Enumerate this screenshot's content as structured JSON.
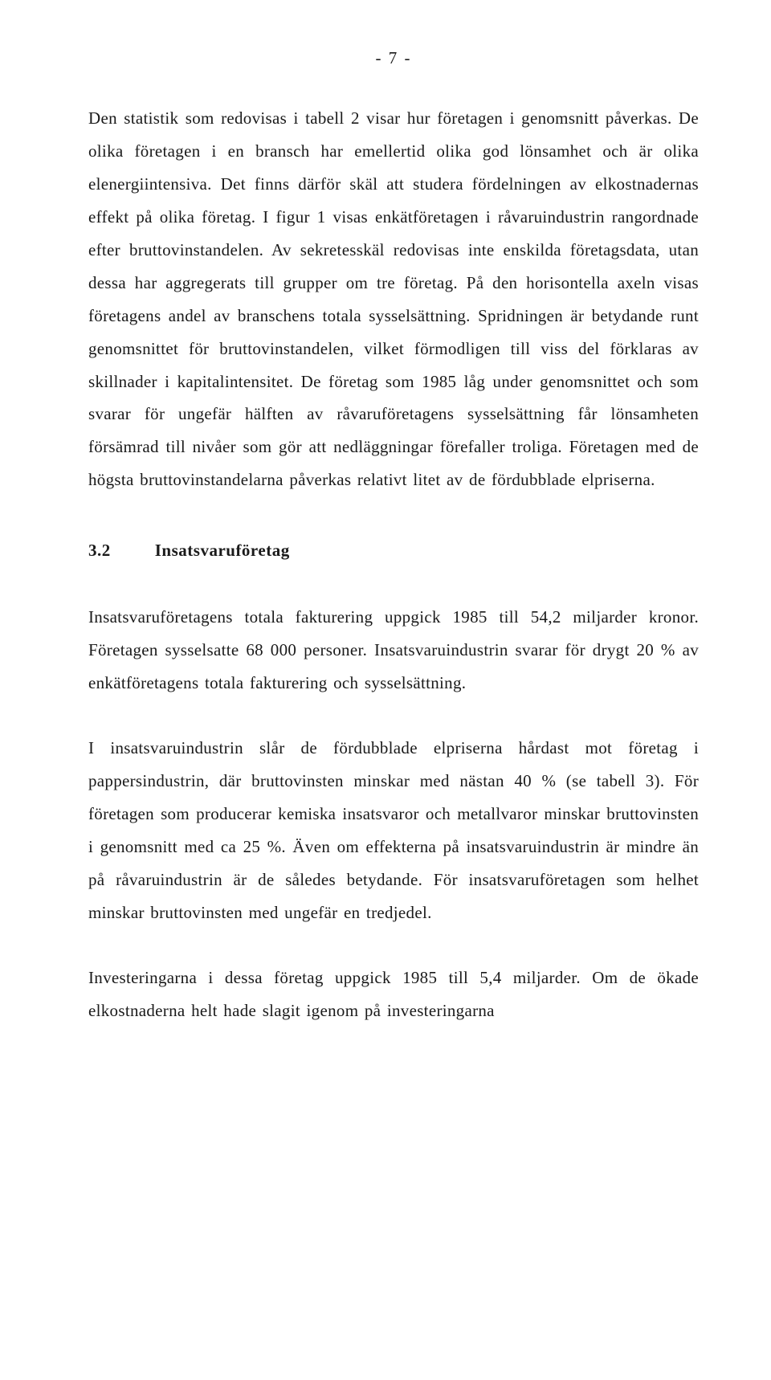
{
  "page_number": "- 7 -",
  "paragraphs": {
    "p1": "Den statistik som redovisas i tabell 2 visar hur företagen i genomsnitt påverkas. De olika företagen i en bransch har emellertid olika god lönsamhet och är olika elenergiintensiva. Det finns därför skäl att studera fördelningen av elkostnadernas effekt på olika företag. I figur 1 visas enkätföretagen i råvaruindustrin rangordnade efter bruttovinstandelen. Av sekretesskäl redovisas inte enskilda företagsdata, utan dessa har aggregerats till grupper om tre företag. På den horisontella axeln visas företagens andel av branschens totala sysselsättning. Spridningen är betydande runt genomsnittet för bruttovinstandelen, vilket förmodligen till viss del förklaras av skillnader i kapitalintensitet. De företag som 1985 låg under genomsnittet och som svarar för ungefär hälften av råvaruföretagens sysselsättning får lönsamheten försämrad till nivåer som gör att nedläggningar förefaller troliga. Företagen med de högsta bruttovinstandelarna påverkas relativt litet av de fördubblade elpriserna.",
    "p2": "Insatsvaruföretagens totala fakturering uppgick 1985 till 54,2 miljarder kronor. Företagen sysselsatte 68 000 personer. Insatsvaruindustrin svarar för drygt 20 % av enkätföretagens totala fakturering och sysselsättning.",
    "p3": "I insatsvaruindustrin slår de fördubblade elpriserna hårdast mot företag i pappersindustrin, där bruttovinsten minskar med nästan 40 % (se tabell 3). För företagen som producerar kemiska insatsvaror och metallvaror minskar bruttovinsten i genomsnitt med ca 25 %. Även om effekterna på insatsvaruindustrin är mindre än på råvaruindustrin är de således betydande. För insatsvaruföretagen som helhet minskar bruttovinsten med ungefär en tredjedel.",
    "p4": "Investeringarna i dessa företag uppgick 1985 till 5,4 miljarder. Om de ökade elkostnaderna helt hade slagit igenom på investeringarna"
  },
  "section": {
    "number": "3.2",
    "title": "Insatsvaruföretag"
  }
}
